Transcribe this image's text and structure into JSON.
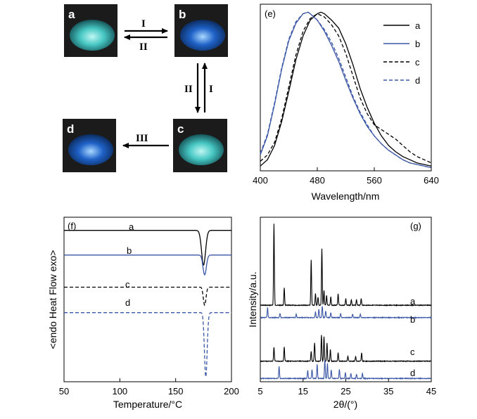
{
  "photos": {
    "panels": [
      {
        "label": "a",
        "tone": "cyan"
      },
      {
        "label": "b",
        "tone": "blue"
      },
      {
        "label": "c",
        "tone": "cyan"
      },
      {
        "label": "d",
        "tone": "blue"
      }
    ],
    "arrows": {
      "a_to_b": "I",
      "b_to_a": "II",
      "c_to_b": "I",
      "b_to_c": "II",
      "c_to_d": "III"
    }
  },
  "colors": {
    "black": "#000000",
    "blue": "#3b56a6",
    "cyan": "#46c6c2",
    "deep_blue": "#1f62c8"
  },
  "chart_data": [
    {
      "type": "line",
      "panel_label": "(e)",
      "xlabel": "Wavelength/nm",
      "xlim": [
        400,
        640
      ],
      "xticks": [
        400,
        480,
        560,
        640
      ],
      "ylim": [
        0,
        1.05
      ],
      "legend": "top-right",
      "series": [
        {
          "name": "a",
          "color": "#000000",
          "dash": false,
          "x": [
            400,
            410,
            420,
            430,
            440,
            450,
            460,
            470,
            480,
            485,
            490,
            500,
            510,
            520,
            530,
            540,
            550,
            560,
            570,
            580,
            590,
            600,
            610,
            620,
            630,
            640
          ],
          "y": [
            0.03,
            0.07,
            0.16,
            0.31,
            0.5,
            0.7,
            0.85,
            0.95,
            0.99,
            1.0,
            0.99,
            0.95,
            0.9,
            0.8,
            0.67,
            0.52,
            0.4,
            0.3,
            0.22,
            0.16,
            0.12,
            0.09,
            0.07,
            0.05,
            0.04,
            0.03
          ]
        },
        {
          "name": "b",
          "color": "#3b56a6",
          "dash": false,
          "x": [
            400,
            410,
            420,
            430,
            440,
            450,
            460,
            467,
            470,
            480,
            490,
            500,
            510,
            520,
            530,
            540,
            550,
            560,
            570,
            580,
            590,
            600,
            610,
            620,
            630,
            640
          ],
          "y": [
            0.1,
            0.22,
            0.42,
            0.64,
            0.82,
            0.93,
            0.99,
            1.0,
            0.99,
            0.95,
            0.88,
            0.79,
            0.69,
            0.57,
            0.46,
            0.36,
            0.28,
            0.22,
            0.17,
            0.13,
            0.1,
            0.07,
            0.05,
            0.04,
            0.03,
            0.02
          ]
        },
        {
          "name": "c",
          "color": "#000000",
          "dash": true,
          "x": [
            400,
            410,
            420,
            430,
            440,
            450,
            460,
            470,
            480,
            490,
            500,
            510,
            520,
            530,
            540,
            550,
            560,
            570,
            580,
            590,
            600,
            610,
            620,
            630,
            640
          ],
          "y": [
            0.06,
            0.1,
            0.18,
            0.33,
            0.53,
            0.73,
            0.88,
            0.96,
            0.99,
            0.97,
            0.92,
            0.85,
            0.74,
            0.6,
            0.46,
            0.36,
            0.29,
            0.26,
            0.23,
            0.2,
            0.16,
            0.12,
            0.09,
            0.07,
            0.05
          ]
        },
        {
          "name": "d",
          "color": "#3b56a6",
          "dash": true,
          "x": [
            400,
            410,
            420,
            430,
            440,
            450,
            460,
            467,
            470,
            480,
            490,
            500,
            510,
            520,
            530,
            540,
            550,
            560,
            570,
            580,
            590,
            600,
            610,
            620,
            630,
            640
          ],
          "y": [
            0.11,
            0.23,
            0.43,
            0.65,
            0.83,
            0.94,
            0.99,
            1.0,
            0.99,
            0.95,
            0.89,
            0.81,
            0.71,
            0.59,
            0.47,
            0.37,
            0.29,
            0.22,
            0.17,
            0.13,
            0.1,
            0.07,
            0.05,
            0.04,
            0.03,
            0.02
          ]
        }
      ]
    },
    {
      "type": "line",
      "panel_label": "(f)",
      "xlabel": "Temperature/°C",
      "ylabel": "<endo Heat Flow exo>",
      "xlim": [
        50,
        200
      ],
      "xticks": [
        50,
        100,
        150,
        200
      ],
      "ylim": [
        0,
        10
      ],
      "series": [
        {
          "name": "a",
          "color": "#000000",
          "dash": false,
          "baseline": 9.2,
          "peak_x": 175,
          "depth": 2.1,
          "width": 1.8
        },
        {
          "name": "b",
          "color": "#3b56a6",
          "dash": false,
          "baseline": 7.7,
          "peak_x": 176,
          "depth": 1.2,
          "width": 1.5
        },
        {
          "name": "c",
          "color": "#000000",
          "dash": true,
          "baseline": 5.75,
          "peak_x": 176,
          "depth": 1.1,
          "width": 1.2
        },
        {
          "name": "d",
          "color": "#3b56a6",
          "dash": true,
          "baseline": 4.2,
          "peak_x": 177,
          "depth": 3.9,
          "width": 1.2
        }
      ]
    },
    {
      "type": "line",
      "panel_label": "(g)",
      "xlabel": "2θ/(°)",
      "ylabel": "Intensity/a.u.",
      "xlim": [
        5,
        45
      ],
      "xticks": [
        5,
        15,
        25,
        35,
        45
      ],
      "xtick_labels": [
        "5",
        "15",
        "25",
        "35",
        "45"
      ],
      "series": [
        {
          "name": "a",
          "color": "#000000",
          "baseline": 0.535,
          "peaks": [
            [
              8.2,
              0.495
            ],
            [
              10.6,
              0.105
            ],
            [
              16.9,
              0.275
            ],
            [
              17.9,
              0.07
            ],
            [
              18.5,
              0.05
            ],
            [
              19.4,
              0.345
            ],
            [
              19.9,
              0.09
            ],
            [
              20.5,
              0.06
            ],
            [
              21.5,
              0.05
            ],
            [
              23.2,
              0.07
            ],
            [
              25.0,
              0.04
            ],
            [
              26.3,
              0.035
            ],
            [
              27.5,
              0.035
            ],
            [
              28.6,
              0.04
            ]
          ]
        },
        {
          "name": "b",
          "color": "#3b56a6",
          "baseline": 0.61,
          "peaks": [
            [
              6.7,
              0.06
            ],
            [
              9.6,
              0.025
            ],
            [
              13.4,
              0.02
            ],
            [
              17.9,
              0.035
            ],
            [
              18.7,
              0.05
            ],
            [
              19.5,
              0.07
            ],
            [
              20.3,
              0.04
            ],
            [
              21.5,
              0.03
            ],
            [
              23.8,
              0.025
            ],
            [
              26.6,
              0.02
            ],
            [
              28.4,
              0.02
            ]
          ]
        },
        {
          "name": "c",
          "color": "#000000",
          "baseline": 0.875,
          "peaks": [
            [
              8.2,
              0.085
            ],
            [
              10.6,
              0.085
            ],
            [
              16.9,
              0.06
            ],
            [
              17.7,
              0.11
            ],
            [
              19.3,
              0.16
            ],
            [
              19.9,
              0.15
            ],
            [
              20.6,
              0.11
            ],
            [
              21.4,
              0.07
            ],
            [
              23.2,
              0.05
            ],
            [
              25.5,
              0.03
            ],
            [
              27.3,
              0.03
            ],
            [
              28.7,
              0.05
            ]
          ]
        },
        {
          "name": "d",
          "color": "#3b56a6",
          "baseline": 0.98,
          "peaks": [
            [
              9.4,
              0.075
            ],
            [
              16.1,
              0.05
            ],
            [
              17.1,
              0.055
            ],
            [
              18.3,
              0.085
            ],
            [
              20.1,
              0.115
            ],
            [
              20.7,
              0.09
            ],
            [
              21.6,
              0.05
            ],
            [
              23.5,
              0.055
            ],
            [
              24.9,
              0.035
            ],
            [
              26.2,
              0.03
            ],
            [
              27.5,
              0.025
            ],
            [
              28.9,
              0.03
            ]
          ]
        }
      ]
    }
  ]
}
